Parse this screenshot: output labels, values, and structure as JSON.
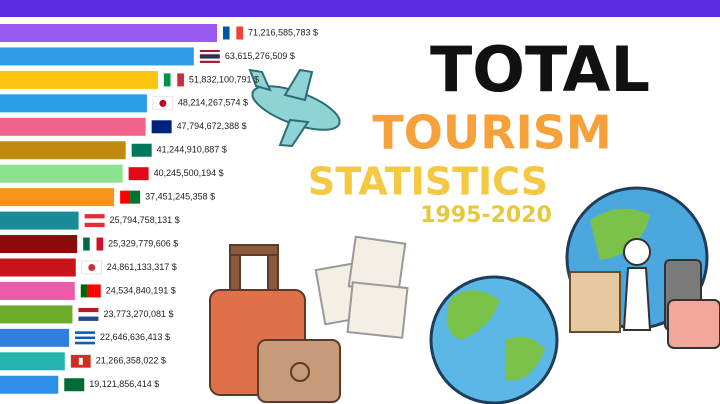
{
  "chart_data": {
    "type": "bar",
    "title": [
      "TOTAL",
      "TOURISM",
      "STATISTICS"
    ],
    "subtitle": "1995-2020",
    "categories": [
      null,
      null,
      null,
      null,
      null,
      null,
      null,
      null,
      null,
      null,
      null,
      null,
      null,
      null,
      null,
      null
    ],
    "series": [
      {
        "name": null,
        "colors": [
          "#9a5cf0",
          "#2f9be8",
          "#fcc40d",
          "#2b9ce8",
          "#f0648c",
          "#c08a10",
          "#8de28f",
          "#f7941d",
          "#1a8a96",
          "#8b0a0a",
          "#c9141c",
          "#ee5aa8",
          "#6aab2a",
          "#2f7fe0",
          "#25b3b0",
          "#2b90e6"
        ],
        "values": [
          71216585783,
          63615276509,
          51832100791,
          48214267574,
          47794672388,
          41244910887,
          40245500194,
          37451245358,
          25794758131,
          25329779606,
          24861133317,
          24534840191,
          23773270081,
          22646636413,
          21266358022,
          19121856414
        ],
        "value_labels": [
          "71,216,585,783 $",
          "63,615,276,509 $",
          "51,832,100,791 $",
          "48,214,267,574 $",
          "47,794,672,388 $",
          "41,244,910,887 $",
          "40,245,500,194 $",
          "37,451,245,358 $",
          "25,794,758,131 $",
          "25,329,779,606 $",
          "24,861,133,317 $",
          "24,534,840,191 $",
          "23,773,270,081 $",
          "22,646,636,413 $",
          "21,266,358,022 $",
          "19,121,856,414 $"
        ]
      }
    ]
  }
}
